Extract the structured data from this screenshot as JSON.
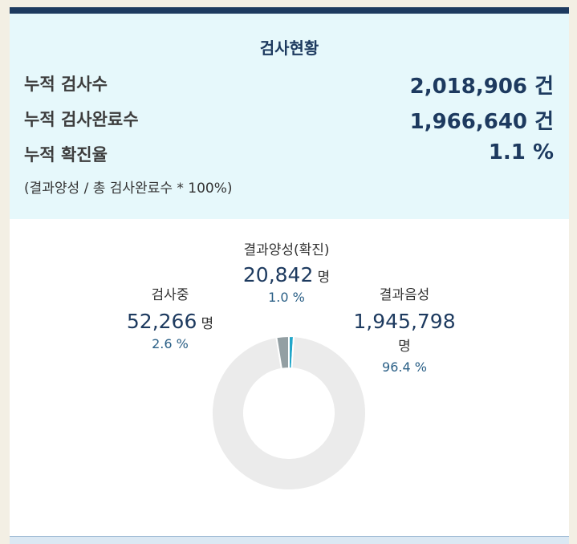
{
  "summary": {
    "title": "검사현황",
    "rows": [
      {
        "label": "누적 검사수",
        "value": "2,018,906 건"
      },
      {
        "label": "누적 검사완료수",
        "value": "1,966,640 건"
      },
      {
        "label": "누적 확진율",
        "value": "1.1 %"
      }
    ],
    "note": "(결과양성 / 총 검사완료수 * 100%)"
  },
  "chart_data": {
    "type": "pie",
    "variant": "donut",
    "slices": [
      {
        "name": "결과양성(확진)",
        "count": "20,842",
        "unit": "명",
        "percent_label": "1.0 %",
        "value": 1.0,
        "color": "#21a6c9"
      },
      {
        "name": "결과음성",
        "count": "1,945,798",
        "unit": "명",
        "percent_label": "96.4 %",
        "value": 96.4,
        "color": "#ebebeb"
      },
      {
        "name": "검사중",
        "count": "52,266",
        "unit": "명",
        "percent_label": "2.6 %",
        "value": 2.6,
        "color": "#939fa3"
      }
    ]
  }
}
